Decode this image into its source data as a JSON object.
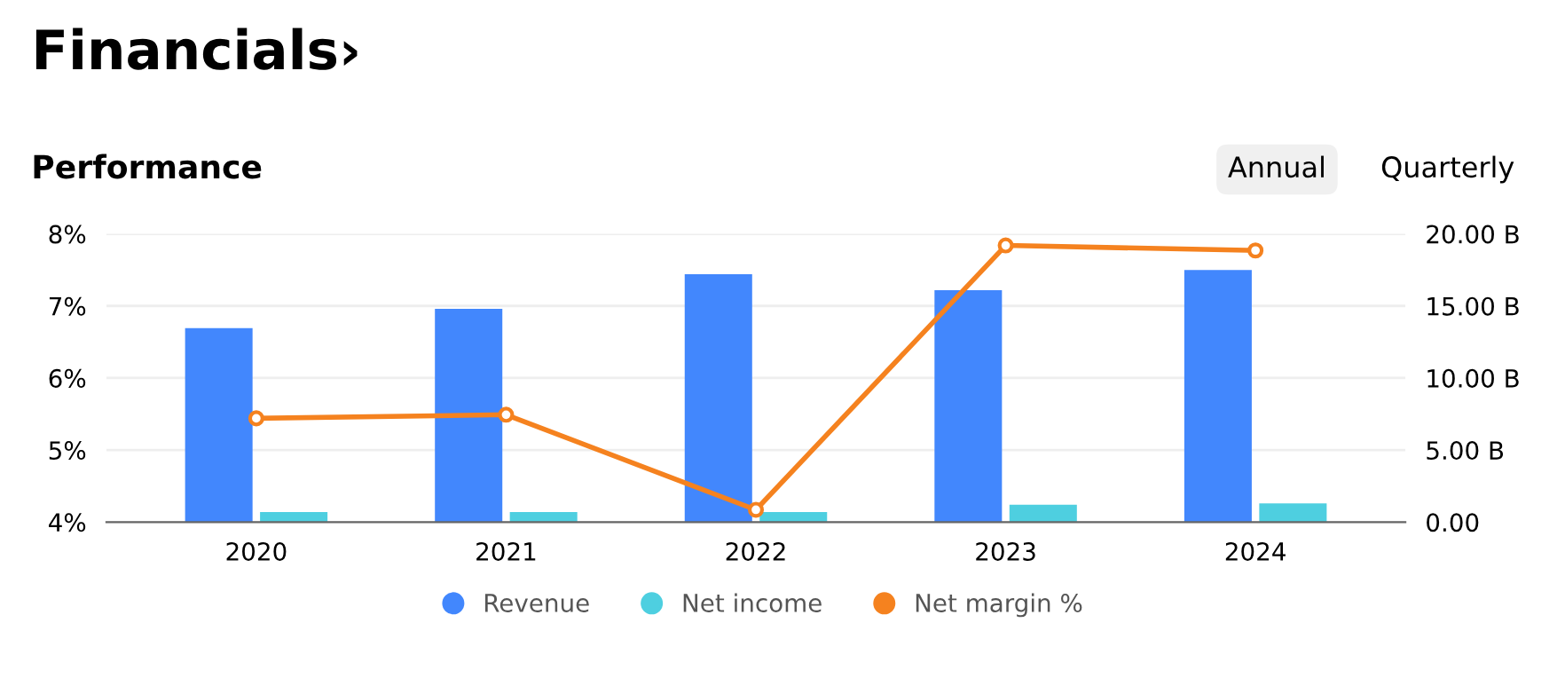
{
  "chart_data": {
    "type": "bar",
    "title": "Financials›",
    "subtitle": "Performance",
    "annotations": [
      "Annual",
      "Quarterly"
    ],
    "categories": [
      "2020",
      "2021",
      "2022",
      "2023",
      "2024"
    ],
    "series": [
      {
        "name": "Revenue",
        "color": "#4287fd",
        "axis": "y2",
        "values": [
          13.46,
          14.8,
          17.2,
          16.1,
          17.5
        ]
      },
      {
        "name": "Net income",
        "color": "#4ecfe0",
        "axis": "y2",
        "values": [
          0.7,
          0.7,
          0.7,
          1.2,
          1.3
        ]
      },
      {
        "name": "Net margin %",
        "color": "#f5821f",
        "type": "line",
        "axis": "y",
        "values": [
          5.44,
          5.49,
          4.17,
          7.84,
          7.77
        ]
      }
    ],
    "ylim": [
      4,
      8
    ],
    "yticks": [
      {
        "value": 4,
        "label": "4%"
      },
      {
        "value": 5,
        "label": "5%"
      },
      {
        "value": 6,
        "label": "6%"
      },
      {
        "value": 7,
        "label": "7%"
      },
      {
        "value": 8,
        "label": "8%"
      }
    ],
    "y2lim": [
      0,
      20
    ],
    "y2ticks": [
      {
        "value": 0,
        "label": "0.00"
      },
      {
        "value": 5,
        "label": "5.00 B"
      },
      {
        "value": 10,
        "label": "10.00 B"
      },
      {
        "value": 15,
        "label": "15.00 B"
      },
      {
        "value": 20,
        "label": "20.00 B"
      }
    ],
    "grid": "y",
    "legend": "bottom",
    "marker": "circle"
  }
}
